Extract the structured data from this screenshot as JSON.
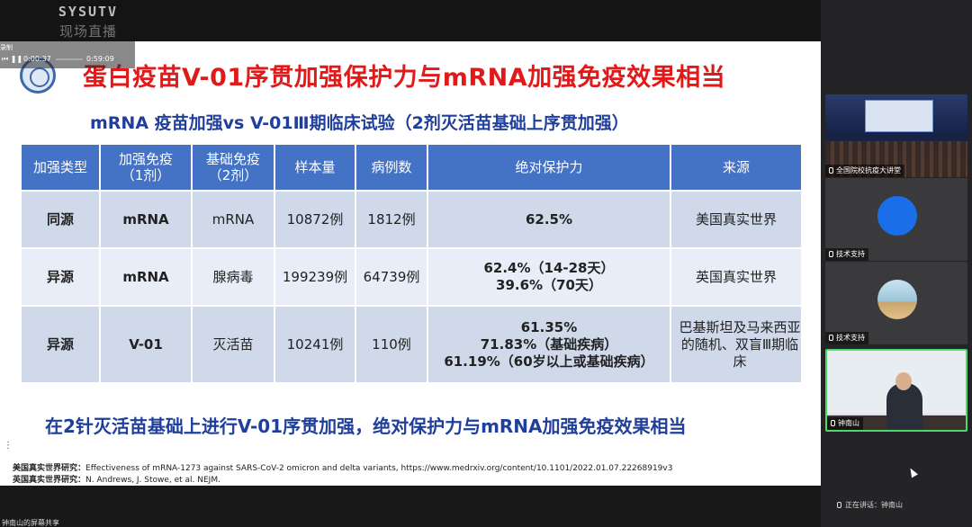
{
  "overlay": {
    "logo_line1": "SYSUTV",
    "logo_line2": "现场直播"
  },
  "player": {
    "recording_label": "录制",
    "current_time": "0:00:37",
    "total_time": "0:59:09"
  },
  "slide": {
    "title": "蛋白疫苗V-01序贯加强保护力与mRNA加强免疫效果相当",
    "subtitle": "mRNA 疫苗加强vs V-01Ⅲ期临床试验（2剂灭活苗基础上序贯加强）",
    "table": {
      "headers": [
        "加强类型",
        "加强免疫\n（1剂）",
        "基础免疫\n（2剂）",
        "样本量",
        "病例数",
        "绝对保护力",
        "来源"
      ],
      "rows": [
        {
          "type": "同源",
          "booster": "mRNA",
          "primary": "mRNA",
          "sample": "10872例",
          "cases": "1812例",
          "efficacy": [
            "62.5%"
          ],
          "source": "美国真实世界"
        },
        {
          "type": "异源",
          "booster": "mRNA",
          "primary": "腺病毒",
          "sample": "199239例",
          "cases": "64739例",
          "efficacy": [
            "62.4%（14-28天）",
            "39.6%（70天）"
          ],
          "source": "英国真实世界"
        },
        {
          "type": "异源",
          "booster": "V-01",
          "primary": "灭活苗",
          "sample": "10241例",
          "cases": "110例",
          "efficacy": [
            "61.35%",
            "71.83%（基础疾病）",
            "61.19%（60岁以上或基础疾病）"
          ],
          "source": "巴基斯坦及马来西亚的随机、双盲Ⅲ期临床"
        }
      ]
    },
    "conclusion": "在2针灭活苗基础上进行V-01序贯加强，绝对保护力与mRNA加强免疫效果相当",
    "references": [
      {
        "label": "美国真实世界研究：",
        "text": "Effectiveness of mRNA-1273 against SARS-CoV-2 omicron and delta variants, https://www.medrxiv.org/content/10.1101/2022.01.07.22268919v3"
      },
      {
        "label": "英国真实世界研究：",
        "text": "N. Andrews, J. Stowe, et al. NEJM."
      }
    ]
  },
  "bottom": {
    "screen_share_label": "钟南山的屏幕共享"
  },
  "participants": [
    {
      "name": "全国院校抗疫大讲堂"
    },
    {
      "name": "技术支持"
    },
    {
      "name": "技术支持"
    },
    {
      "name": "钟南山"
    }
  ],
  "status": {
    "speaking": "正在讲话：钟南山"
  },
  "colors": {
    "title_red": "#e01a1a",
    "subtitle_blue": "#1f3f9a",
    "header_blue": "#4472c4",
    "row_light": "#cfd9ea",
    "row_lighter": "#e8eef7",
    "avatar_blue": "#1a6fe8",
    "active_border": "#4cd964"
  }
}
